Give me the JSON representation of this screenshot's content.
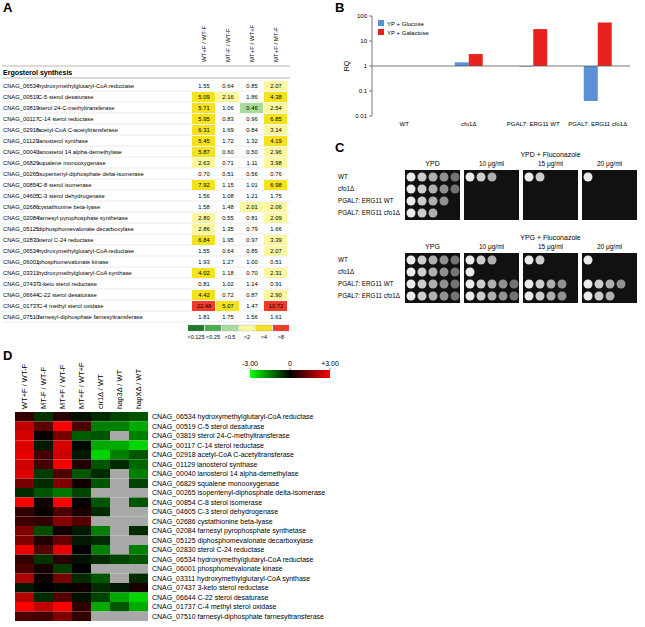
{
  "panel_labels": [
    "A",
    "B",
    "C",
    "D"
  ],
  "table": {
    "title": "Ergosterol synthesis",
    "columns": [
      "WT+F / WT-F",
      "MT-F / WT-F",
      "MT+F / WT+F",
      "MT+F / MT-F"
    ],
    "rows": [
      {
        "id": "CNAG_06534",
        "name": "hydroxymethylglutaryl-CoA reductase",
        "values": [
          "1.55",
          "0.64",
          "0.85",
          "2.07"
        ]
      },
      {
        "id": "CNAG_00519",
        "name": "C-5 sterol desaturase",
        "values": [
          "5.09",
          "2.16",
          "1.86",
          "4.38"
        ]
      },
      {
        "id": "CNAG_03819",
        "name": "sterol 24-C-methyltransferase",
        "values": [
          "5.71",
          "1.06",
          "0.46",
          "2.54"
        ]
      },
      {
        "id": "CNAG_00117",
        "name": "C-14 sterol reductase",
        "values": [
          "5.95",
          "0.83",
          "0.96",
          "6.85"
        ]
      },
      {
        "id": "CNAG_02918",
        "name": "acetyl-CoA C-acetyltransferase",
        "values": [
          "6.31",
          "1.69",
          "0.84",
          "3.14"
        ]
      },
      {
        "id": "CNAG_01129",
        "name": "lanosterol synthase",
        "values": [
          "5.45",
          "1.72",
          "1.32",
          "4.19"
        ]
      },
      {
        "id": "CNAG_00040",
        "name": "lanosterol 14 alpha-demethylase",
        "values": [
          "5.87",
          "0.60",
          "0.50",
          "2.96"
        ]
      },
      {
        "id": "CNAG_06829",
        "name": "squalene monooxygenase",
        "values": [
          "2.63",
          "0.71",
          "1.11",
          "3.98"
        ]
      },
      {
        "id": "CNAG_00265",
        "name": "isopentenyl-diphosphate delta-isomerase",
        "values": [
          "0.70",
          "0.51",
          "0.56",
          "0.76"
        ]
      },
      {
        "id": "CNAG_00854",
        "name": "C-8 sterol isomerase",
        "values": [
          "7.92",
          "1.15",
          "1.01",
          "6.98"
        ]
      },
      {
        "id": "CNAG_04605",
        "name": "C-3 sterol dehydrogenase",
        "values": [
          "1.56",
          "1.08",
          "1.21",
          "1.75"
        ]
      },
      {
        "id": "CNAG_02686",
        "name": "cystathionine beta-lyase",
        "values": [
          "1.58",
          "1.48",
          "2.01",
          "2.06"
        ]
      },
      {
        "id": "CNAG_02084",
        "name": "farnesyl pyrophosphate synthetase",
        "values": [
          "2.80",
          "0.55",
          "0.81",
          "2.09"
        ]
      },
      {
        "id": "CNAG_05125",
        "name": "diphosphomevalonate decarboxylase",
        "values": [
          "2.86",
          "1.35",
          "0.79",
          "1.66"
        ]
      },
      {
        "id": "CNAG_02830",
        "name": "sterol C-24 reductase",
        "values": [
          "6.84",
          "1.95",
          "0.97",
          "3.39"
        ]
      },
      {
        "id": "CNAG_06534",
        "name": "hydroxymethylglutaryl-CoA reductase",
        "values": [
          "1.55",
          "0.64",
          "0.85",
          "2.07"
        ]
      },
      {
        "id": "CNAG_06001",
        "name": "phosphomevalonate kinase",
        "values": [
          "1.93",
          "1.27",
          "1.00",
          "0.51"
        ]
      },
      {
        "id": "CNAG_03311",
        "name": "hydroxymethylglutaryl-CoA synthase",
        "values": [
          "4.02",
          "1.18",
          "0.70",
          "2.31"
        ]
      },
      {
        "id": "CNAG_07437",
        "name": "3-keto sterol reductase",
        "values": [
          "0.81",
          "1.02",
          "1.14",
          "0.91"
        ]
      },
      {
        "id": "CNAG_06644",
        "name": "C-22 sterol desaturase",
        "values": [
          "4.42",
          "0.72",
          "0.87",
          "2.90"
        ]
      },
      {
        "id": "CNAG_01737",
        "name": "C-4 methyl sterol oxidase",
        "values": [
          "22.48",
          "5.07",
          "1.47",
          "10.72"
        ]
      },
      {
        "id": "CNAG_07510",
        "name": "farnesyl-diphosphate farnesyltransferase",
        "values": [
          "1.81",
          "1.75",
          "1.56",
          "1.61"
        ]
      }
    ],
    "legend": [
      {
        "label": "<0.125",
        "max": 0.125,
        "color": "#1f7a2e"
      },
      {
        "label": "<0.25",
        "max": 0.25,
        "color": "#4cb050"
      },
      {
        "label": "<0.5",
        "max": 0.5,
        "color": "#a8dc9c"
      },
      {
        "label": ">2",
        "min": 2,
        "color": "#fbf7a0"
      },
      {
        "label": ">4",
        "min": 4,
        "color": "#f5e21e"
      },
      {
        "label": ">8",
        "min": 8,
        "color": "#f03a2a"
      }
    ]
  },
  "chart_data": [
    {
      "type": "bar",
      "ylabel": "RQ",
      "categories": [
        "WT",
        "cfo1Δ",
        "PGAL7: ERG11 WT",
        "PGAL7: ERG11 cfo1Δ"
      ],
      "series": [
        {
          "name": "YP + Glucose",
          "color": "#5b8fd6",
          "values": [
            1,
            1.4,
            0.95,
            0.04
          ]
        },
        {
          "name": "YP + Galactose",
          "color": "#e8231f",
          "values": [
            1,
            3,
            30,
            55
          ]
        }
      ],
      "ylim": [
        0.01,
        100
      ],
      "yticks": [
        0.01,
        0.1,
        1,
        10,
        100
      ],
      "log": "y",
      "legend": "top-left"
    },
    {
      "type": "heatmap",
      "x": [
        "WT+F / WT-F",
        "MT-F / WT-F",
        "MT+F / WT-F",
        "MT+F / WT+F",
        "cir1Δ / WT",
        "hap3Δ / WT",
        "hapXΔ / WT"
      ],
      "y": [
        "CNAG_06534 hydroxymethylglutaryl-CoA reductase",
        "CNAG_00519 C-5 sterol desaturase",
        "CNAG_03819 sterol 24-C-methyltransferase",
        "CNAG_00117 C-14 sterol reductase",
        "CNAG_02918 acetyl-CoA C-acetyltransferase",
        "CNAG_01129 lanosterol synthase",
        "CNAG_00040 lanosterol 14 alpha-demethylase",
        "CNAG_06829 squalene monooxygenase",
        "CNAG_00265 isopentenyl-diphosphate delta-isomerase",
        "CNAG_00854 C-8 sterol isomerase",
        "CNAG_04605 C-3 sterol dehydrogenase",
        "CNAG_02686 cystathionine beta-lyase",
        "CNAG_02084 farnesyl pyrophosphate synthetase",
        "CNAG_05125 diphosphomevalonate decarboxylase",
        "CNAG_02830 sterol C-24 reductase",
        "CNAG_06534 hydroxymethylglutaryl-CoA reductase",
        "CNAG_06001 phosphomevalonate kinase",
        "CNAG_03311 hydroxymethylglutaryl-CoA synthase",
        "CNAG_07437 3-keto sterol reductase",
        "CNAG_06644 C-22 sterol desaturase",
        "CNAG_01737 C-4 methyl sterol oxidase",
        "CNAG_07510 farnesyl-diphosphate farnesyltransferase"
      ],
      "values": [
        [
          0.6,
          -0.6,
          0.5,
          -0.2,
          -0.5,
          -0.8,
          -1.0
        ],
        [
          2.3,
          1.1,
          3.2,
          0.9,
          -1.5,
          -1.5,
          -2.0
        ],
        [
          2.5,
          0.1,
          1.4,
          -1.1,
          -1.0,
          null,
          -1.5
        ],
        [
          2.6,
          -0.3,
          2.5,
          -0.1,
          -2.0,
          -2.0,
          -2.5
        ],
        [
          2.7,
          0.8,
          2.4,
          -0.3,
          -2.5,
          -1.5,
          -1.0
        ],
        [
          2.4,
          0.8,
          2.9,
          0.4,
          -1.0,
          -0.5,
          -1.2
        ],
        [
          2.6,
          -0.7,
          0.9,
          -1.0,
          -0.5,
          null,
          -1.5
        ],
        [
          1.4,
          -0.5,
          1.5,
          0.2,
          -1.0,
          null,
          -0.8
        ],
        [
          -0.5,
          -1.0,
          -1.4,
          -0.8,
          null,
          null,
          null
        ],
        [
          3.0,
          0.2,
          3.0,
          0.0,
          -1.0,
          null,
          -1.0
        ],
        [
          0.6,
          0.1,
          0.9,
          0.3,
          -0.5,
          null,
          null
        ],
        [
          0.7,
          0.6,
          1.6,
          1.0,
          null,
          null,
          null
        ],
        [
          1.5,
          -0.9,
          0.2,
          -0.3,
          -1.5,
          null,
          -0.5
        ],
        [
          1.5,
          0.4,
          1.2,
          -0.3,
          -0.5,
          null,
          null
        ],
        [
          2.8,
          1.0,
          2.7,
          0.0,
          -1.5,
          null,
          -1.5
        ],
        [
          0.6,
          -0.6,
          0.5,
          -0.2,
          -0.5,
          -0.8,
          -1.0
        ],
        [
          0.9,
          0.3,
          -0.7,
          0.0,
          null,
          null,
          null
        ],
        [
          2.0,
          0.2,
          1.4,
          -0.5,
          -1.0,
          null,
          -0.5
        ],
        [
          -0.3,
          0.0,
          -0.1,
          0.2,
          -0.5,
          -0.3,
          0.3
        ],
        [
          2.1,
          -0.5,
          1.0,
          -0.2,
          -0.8,
          -2.0,
          -2.5
        ],
        [
          4.5,
          2.3,
          5.7,
          0.6,
          -2.0,
          -1.0,
          -2.0
        ],
        [
          0.9,
          0.8,
          1.5,
          0.6,
          null,
          null,
          null
        ]
      ],
      "zlim": [
        -3,
        3
      ],
      "zticks": [
        {
          "value": -3,
          "label": "-3.00"
        },
        0,
        {
          "value": 3,
          "label": "+3.00"
        }
      ]
    }
  ],
  "spot_assay": {
    "strains": [
      "WT",
      "cfo1Δ",
      "PGAL7: ERG11 WT",
      "PGAL7: ERG11 cfo1Δ"
    ],
    "media": [
      {
        "name": "YPD",
        "drug": "YPD + Fluconazole",
        "concentrations": [
          "10 μg/ml",
          "15 μg/ml",
          "20 μg/ml"
        ],
        "growth": [
          [
            5,
            5,
            4,
            3
          ],
          [
            3,
            0,
            0,
            0
          ],
          [
            2,
            0,
            0,
            0
          ],
          [
            1,
            0,
            0,
            0
          ]
        ]
      },
      {
        "name": "YPG",
        "drug": "YPG + Fluconazole",
        "concentrations": [
          "10 μg/ml",
          "15 μg/ml",
          "20 μg/ml"
        ],
        "growth": [
          [
            5,
            5,
            5,
            5
          ],
          [
            3,
            1,
            5,
            5
          ],
          [
            2,
            0,
            4,
            4
          ],
          [
            1,
            0,
            4,
            3
          ]
        ]
      }
    ]
  }
}
